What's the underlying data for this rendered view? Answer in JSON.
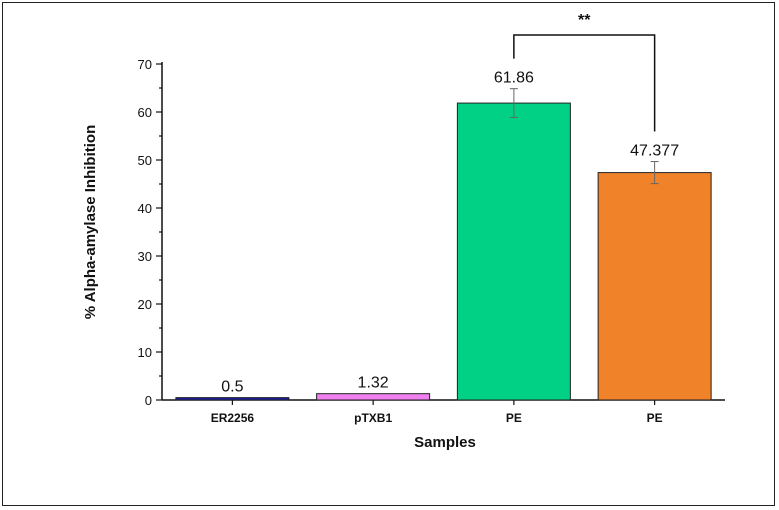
{
  "chart_data": {
    "type": "bar",
    "categories": [
      "ER2256",
      "pTXB1",
      "PE",
      "PE"
    ],
    "values": [
      0.5,
      1.32,
      61.86,
      47.377
    ],
    "value_labels": [
      "0.5",
      "1.32",
      "61.86",
      "47.377"
    ],
    "error_bars": [
      0,
      0,
      3.0,
      2.3
    ],
    "colors": [
      "#1c1ca6",
      "#f080f0",
      "#00d184",
      "#f0832a"
    ],
    "xlabel": "Samples",
    "ylabel": "% Alpha-amylase Inhibition",
    "ylim": [
      0,
      70
    ],
    "yticks": [
      0,
      10,
      20,
      30,
      40,
      50,
      60,
      70
    ],
    "grid": false,
    "annotation": {
      "text": "**",
      "between": [
        2,
        3
      ]
    }
  }
}
